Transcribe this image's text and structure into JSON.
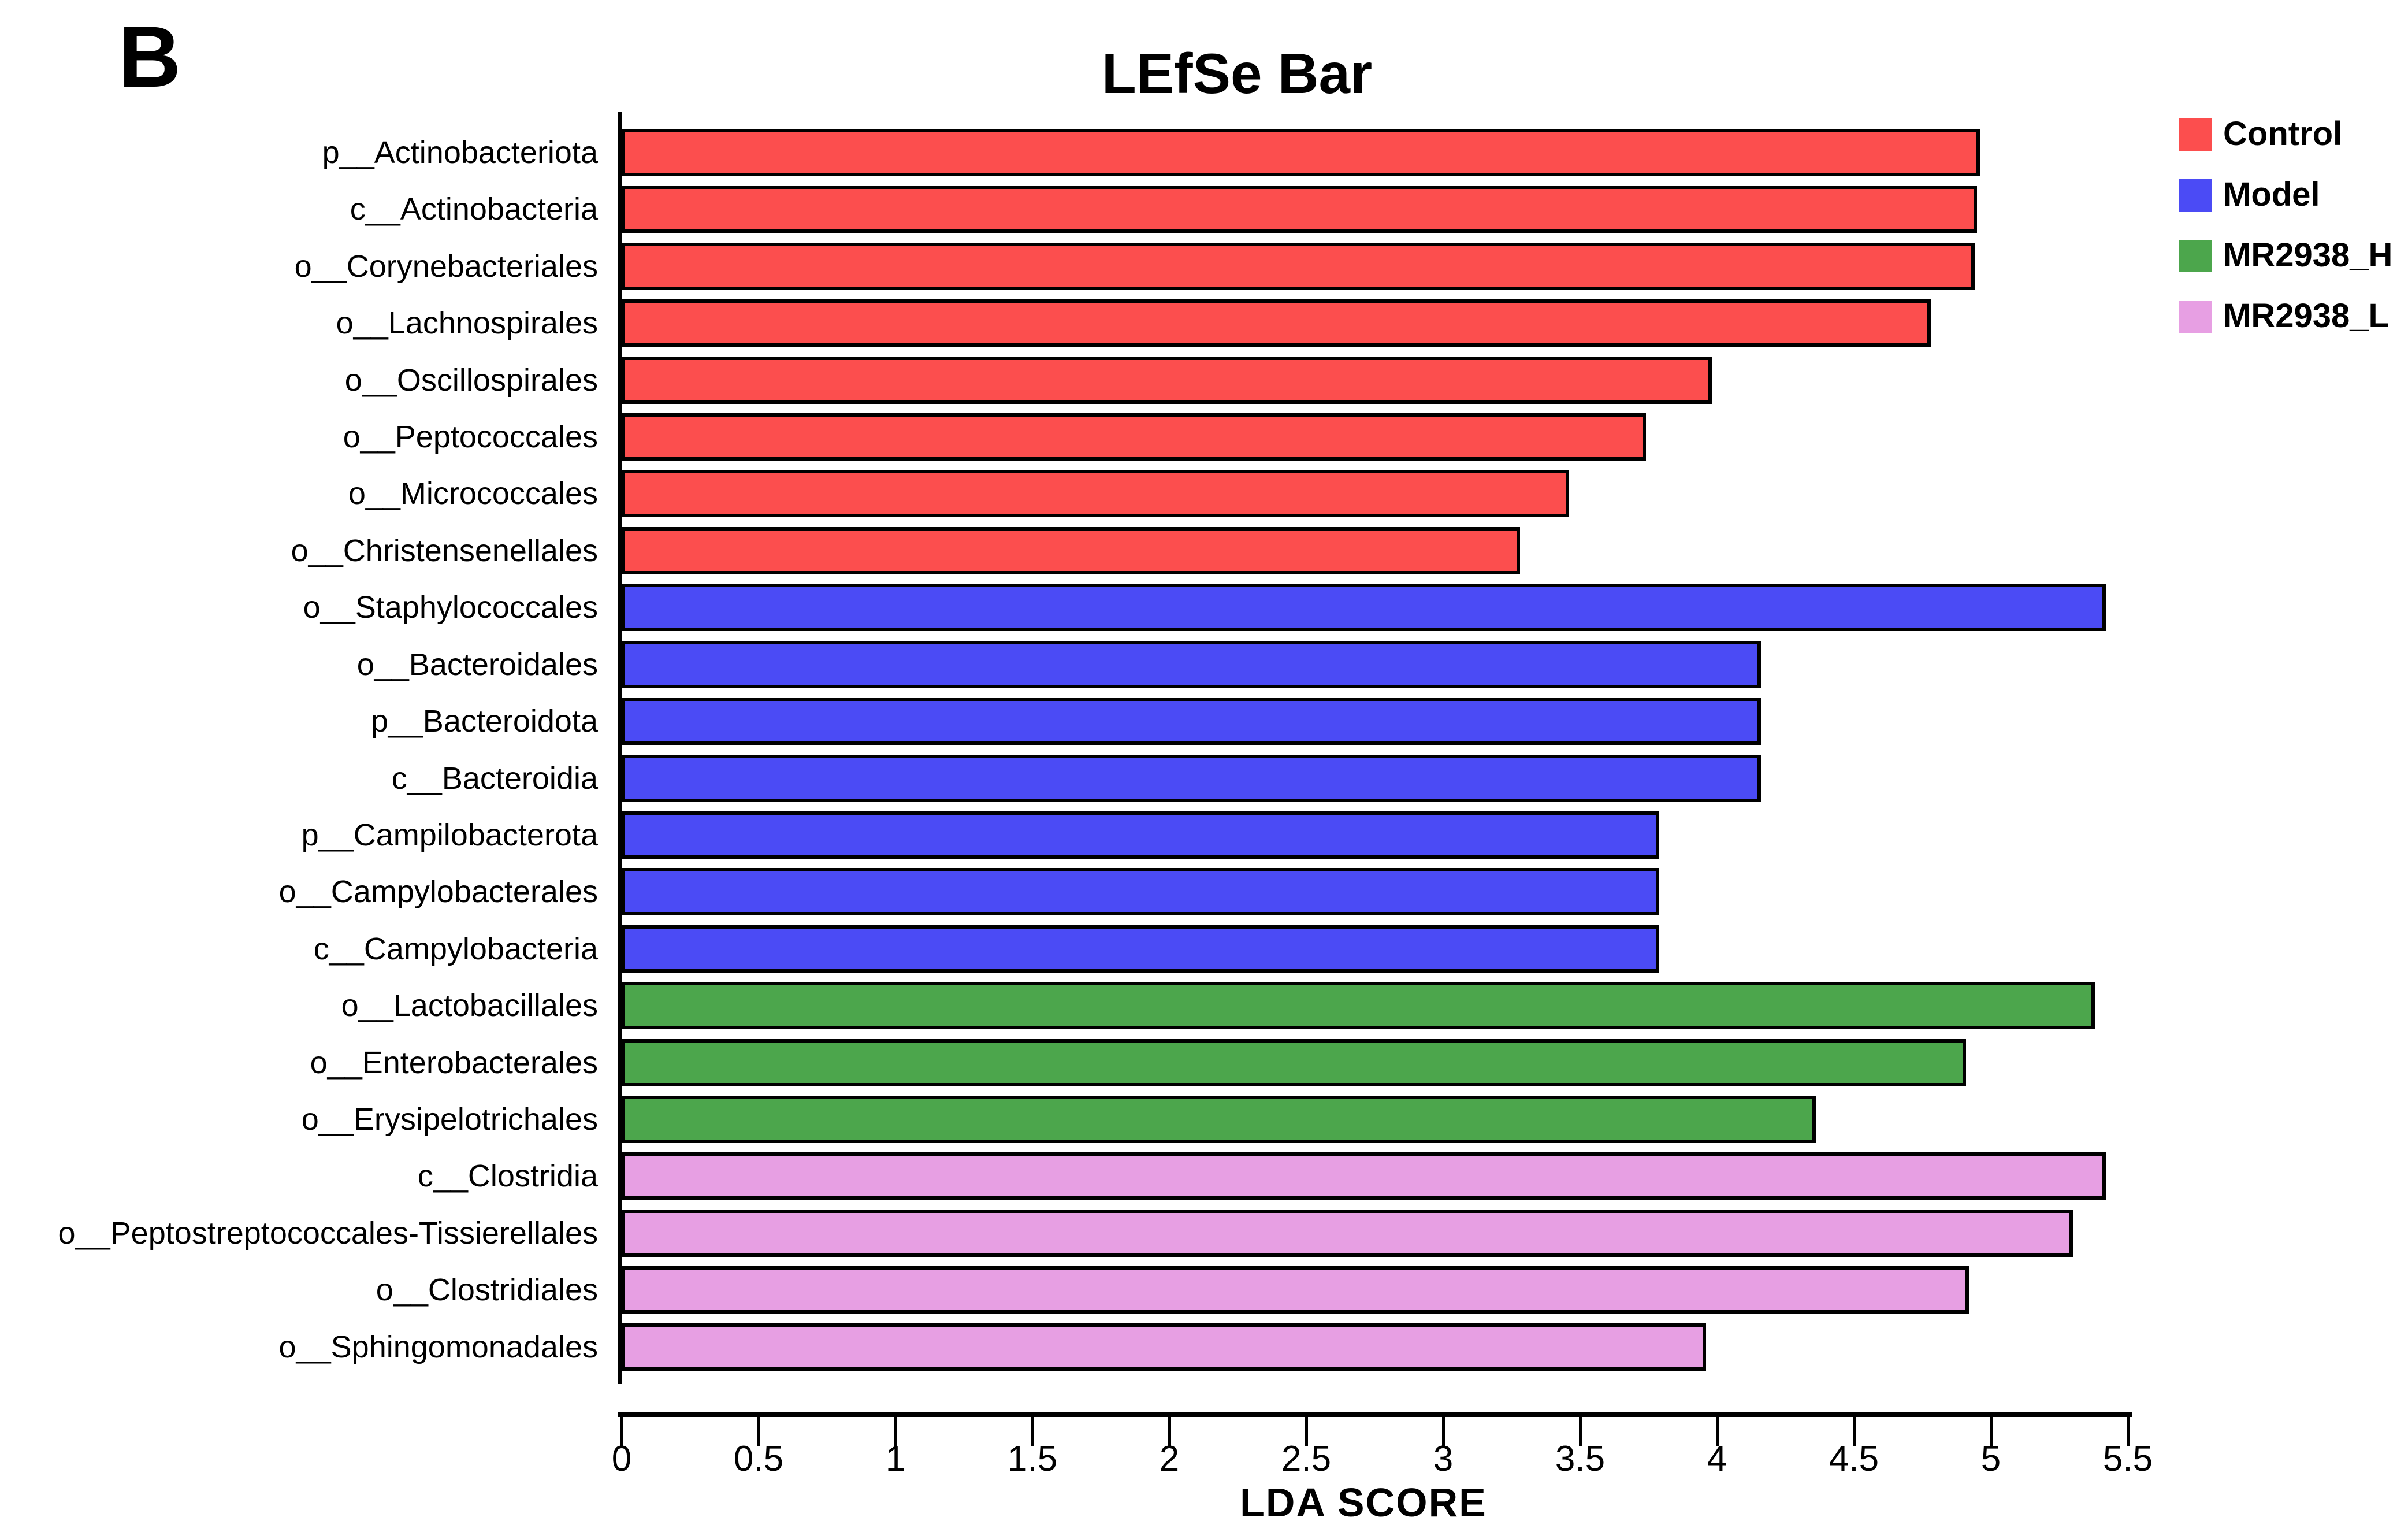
{
  "figure": {
    "panel_label": "B",
    "title": "LEfSe Bar",
    "background_color": "#ffffff"
  },
  "legend": {
    "position": "top-right",
    "items": [
      {
        "label": "Control",
        "color": "#FC4E4E"
      },
      {
        "label": "Model",
        "color": "#4B4BF5"
      },
      {
        "label": "MR2938_H",
        "color": "#4CA64C"
      },
      {
        "label": "MR2938_L",
        "color": "#E79FE3"
      }
    ]
  },
  "chart_data": {
    "type": "bar",
    "orientation": "horizontal",
    "title": "LEfSe Bar",
    "xlabel": "LDA SCORE",
    "xlim": [
      0,
      5.5
    ],
    "xticks": [
      "0",
      "0.5",
      "1",
      "1.5",
      "2",
      "2.5",
      "3",
      "3.5",
      "4",
      "4.5",
      "5",
      "5.5"
    ],
    "grid": false,
    "bar_border_color": "#000000",
    "categories": [
      "p__Actinobacteriota",
      "c__Actinobacteria",
      "o__Corynebacteriales",
      "o__Lachnospirales",
      "o__Oscillospirales",
      "o__Peptococcales",
      "o__Micrococcales",
      "o__Christensenellales",
      "o__Staphylococcales",
      "o__Bacteroidales",
      "p__Bacteroidota",
      "c__Bacteroidia",
      "p__Campilobacterota",
      "o__Campylobacterales",
      "c__Campylobacteria",
      "o__Lactobacillales",
      "o__Enterobacterales",
      "o__Erysipelotrichales",
      "c__Clostridia",
      "o__Peptostreptococcales-Tissierellales",
      "o__Clostridiales",
      "o__Sphingomonadales"
    ],
    "values": [
      4.96,
      4.95,
      4.94,
      4.78,
      3.98,
      3.74,
      3.46,
      3.28,
      5.42,
      4.16,
      4.16,
      4.16,
      3.79,
      3.79,
      3.79,
      5.38,
      4.91,
      4.36,
      5.42,
      5.3,
      4.92,
      3.96
    ],
    "groups": [
      "Control",
      "Control",
      "Control",
      "Control",
      "Control",
      "Control",
      "Control",
      "Control",
      "Model",
      "Model",
      "Model",
      "Model",
      "Model",
      "Model",
      "Model",
      "MR2938_H",
      "MR2938_H",
      "MR2938_H",
      "MR2938_L",
      "MR2938_L",
      "MR2938_L",
      "MR2938_L"
    ],
    "group_colors": {
      "Control": "#FC4E4E",
      "Model": "#4B4BF5",
      "MR2938_H": "#4CA64C",
      "MR2938_L": "#E79FE3"
    }
  }
}
